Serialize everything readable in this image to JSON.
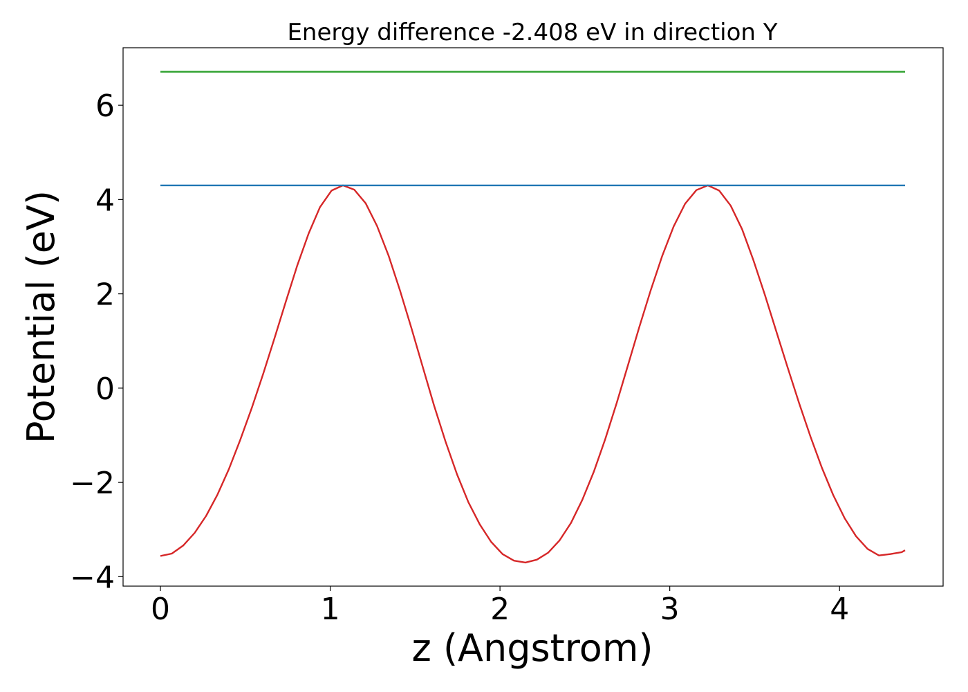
{
  "chart_data": {
    "type": "line",
    "title": "Energy difference -2.408 eV in direction Y",
    "xlabel": "z (Angstrom)",
    "ylabel": "Potential (eV)",
    "xlim": [
      -0.22,
      4.61
    ],
    "ylim": [
      -4.2,
      7.22
    ],
    "x_ticks": [
      0,
      1,
      2,
      3,
      4
    ],
    "x_tick_labels": [
      "0",
      "1",
      "2",
      "3",
      "4"
    ],
    "y_ticks": [
      -4,
      -2,
      0,
      2,
      4,
      6
    ],
    "y_tick_labels": [
      "−4",
      "−2",
      "0",
      "2",
      "4",
      "6"
    ],
    "grid": false,
    "legend": "none",
    "series": [
      {
        "color": "#d62728",
        "x": [
          0.0,
          0.067,
          0.134,
          0.202,
          0.269,
          0.336,
          0.403,
          0.47,
          0.537,
          0.605,
          0.672,
          0.739,
          0.806,
          0.873,
          0.94,
          1.008,
          1.075,
          1.142,
          1.209,
          1.276,
          1.344,
          1.411,
          1.478,
          1.545,
          1.612,
          1.679,
          1.747,
          1.814,
          1.881,
          1.948,
          2.015,
          2.082,
          2.15,
          2.217,
          2.284,
          2.351,
          2.418,
          2.485,
          2.553,
          2.62,
          2.687,
          2.754,
          2.821,
          2.888,
          2.956,
          3.023,
          3.09,
          3.157,
          3.224,
          3.291,
          3.359,
          3.426,
          3.493,
          3.56,
          3.627,
          3.694,
          3.762,
          3.829,
          3.896,
          3.963,
          4.03,
          4.097,
          4.165,
          4.232,
          4.299,
          4.366,
          4.386
        ],
        "y": [
          -3.56,
          -3.51,
          -3.34,
          -3.07,
          -2.71,
          -2.26,
          -1.72,
          -1.1,
          -0.43,
          0.3,
          1.06,
          1.84,
          2.6,
          3.28,
          3.84,
          4.19,
          4.3,
          4.21,
          3.92,
          3.44,
          2.81,
          2.07,
          1.28,
          0.45,
          -0.37,
          -1.13,
          -1.83,
          -2.42,
          -2.89,
          -3.26,
          -3.52,
          -3.66,
          -3.7,
          -3.64,
          -3.49,
          -3.23,
          -2.86,
          -2.37,
          -1.77,
          -1.08,
          -0.32,
          0.49,
          1.3,
          2.08,
          2.81,
          3.43,
          3.91,
          4.2,
          4.3,
          4.19,
          3.87,
          3.37,
          2.71,
          1.98,
          1.21,
          0.44,
          -0.32,
          -1.03,
          -1.69,
          -2.27,
          -2.76,
          -3.14,
          -3.41,
          -3.55,
          -3.52,
          -3.48,
          -3.44
        ]
      },
      {
        "color": "#1f77b4",
        "x": [
          0.0,
          4.386
        ],
        "y": [
          4.3,
          4.3
        ]
      },
      {
        "color": "#2ca02c",
        "x": [
          0.0,
          4.386
        ],
        "y": [
          6.71,
          6.71
        ]
      }
    ]
  }
}
